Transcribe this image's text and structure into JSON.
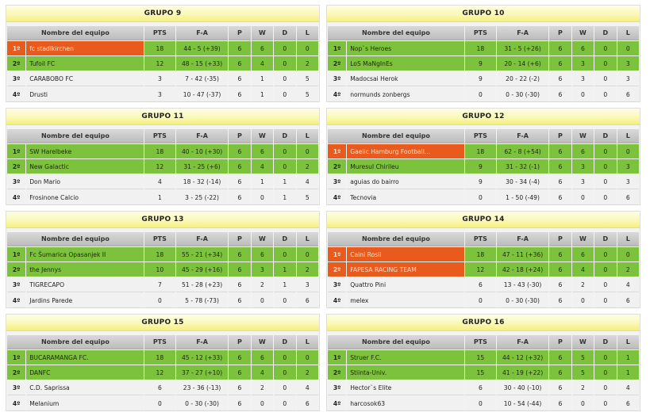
{
  "columns": [
    "Nombre del equipo",
    "PTS",
    "F-A",
    "P",
    "W",
    "D",
    "L"
  ],
  "colors": {
    "qualified_row": "#7cc23d",
    "highlight_row": "#e85b1c",
    "plain_row": "#f1f1f1",
    "title_bar": "#fbf9b8"
  },
  "groups": [
    {
      "title": "GRUPO 9",
      "rows": [
        {
          "pos": "1º",
          "team": "fc stadlkirchen",
          "pts": "18",
          "fa": "44 - 5 (+39)",
          "p": "6",
          "w": "6",
          "d": "0",
          "l": "0",
          "status": "qualified",
          "highlight": true
        },
        {
          "pos": "2º",
          "team": "Tufoil FC",
          "pts": "12",
          "fa": "48 - 15 (+33)",
          "p": "6",
          "w": "4",
          "d": "0",
          "l": "2",
          "status": "qualified",
          "highlight": false
        },
        {
          "pos": "3º",
          "team": "CARABOBO FC",
          "pts": "3",
          "fa": "7 - 42 (-35)",
          "p": "6",
          "w": "1",
          "d": "0",
          "l": "5",
          "status": "plain",
          "highlight": false
        },
        {
          "pos": "4º",
          "team": "Drusti",
          "pts": "3",
          "fa": "10 - 47 (-37)",
          "p": "6",
          "w": "1",
          "d": "0",
          "l": "5",
          "status": "plain",
          "highlight": false
        }
      ]
    },
    {
      "title": "GRUPO 10",
      "rows": [
        {
          "pos": "1º",
          "team": "Nop`s Heroes",
          "pts": "18",
          "fa": "31 - 5 (+26)",
          "p": "6",
          "w": "6",
          "d": "0",
          "l": "0",
          "status": "qualified",
          "highlight": false
        },
        {
          "pos": "2º",
          "team": "LoS MaNgInEs",
          "pts": "9",
          "fa": "20 - 14 (+6)",
          "p": "6",
          "w": "3",
          "d": "0",
          "l": "3",
          "status": "qualified",
          "highlight": false
        },
        {
          "pos": "3º",
          "team": "Madocsai Herok",
          "pts": "9",
          "fa": "20 - 22 (-2)",
          "p": "6",
          "w": "3",
          "d": "0",
          "l": "3",
          "status": "plain",
          "highlight": false
        },
        {
          "pos": "4º",
          "team": "normunds zonbergs",
          "pts": "0",
          "fa": "0 - 30 (-30)",
          "p": "6",
          "w": "0",
          "d": "0",
          "l": "6",
          "status": "plain",
          "highlight": false
        }
      ]
    },
    {
      "title": "GRUPO 11",
      "rows": [
        {
          "pos": "1º",
          "team": "SW Harelbeke",
          "pts": "18",
          "fa": "40 - 10 (+30)",
          "p": "6",
          "w": "6",
          "d": "0",
          "l": "0",
          "status": "qualified",
          "highlight": false
        },
        {
          "pos": "2º",
          "team": "New Galactic",
          "pts": "12",
          "fa": "31 - 25 (+6)",
          "p": "6",
          "w": "4",
          "d": "0",
          "l": "2",
          "status": "qualified",
          "highlight": false
        },
        {
          "pos": "3º",
          "team": "Don Mario",
          "pts": "4",
          "fa": "18 - 32 (-14)",
          "p": "6",
          "w": "1",
          "d": "1",
          "l": "4",
          "status": "plain",
          "highlight": false
        },
        {
          "pos": "4º",
          "team": "Frosinone Calcio",
          "pts": "1",
          "fa": "3 - 25 (-22)",
          "p": "6",
          "w": "0",
          "d": "1",
          "l": "5",
          "status": "plain",
          "highlight": false
        }
      ]
    },
    {
      "title": "GRUPO 12",
      "rows": [
        {
          "pos": "1º",
          "team": "Gaelic Hamburg Football...",
          "pts": "18",
          "fa": "62 - 8 (+54)",
          "p": "6",
          "w": "6",
          "d": "0",
          "l": "0",
          "status": "qualified",
          "highlight": true
        },
        {
          "pos": "2º",
          "team": "Muresul Chirileu",
          "pts": "9",
          "fa": "31 - 32 (-1)",
          "p": "6",
          "w": "3",
          "d": "0",
          "l": "3",
          "status": "qualified",
          "highlight": false
        },
        {
          "pos": "3º",
          "team": "aguias do bairro",
          "pts": "9",
          "fa": "30 - 34 (-4)",
          "p": "6",
          "w": "3",
          "d": "0",
          "l": "3",
          "status": "plain",
          "highlight": false
        },
        {
          "pos": "4º",
          "team": "Tecnovia",
          "pts": "0",
          "fa": "1 - 50 (-49)",
          "p": "6",
          "w": "0",
          "d": "0",
          "l": "6",
          "status": "plain",
          "highlight": false
        }
      ]
    },
    {
      "title": "GRUPO 13",
      "rows": [
        {
          "pos": "1º",
          "team": "Fc Šumarica Opasanjek II",
          "pts": "18",
          "fa": "55 - 21 (+34)",
          "p": "6",
          "w": "6",
          "d": "0",
          "l": "0",
          "status": "qualified",
          "highlight": false
        },
        {
          "pos": "2º",
          "team": "the Jennys",
          "pts": "10",
          "fa": "45 - 29 (+16)",
          "p": "6",
          "w": "3",
          "d": "1",
          "l": "2",
          "status": "qualified",
          "highlight": false
        },
        {
          "pos": "3º",
          "team": "TIGRECAPO",
          "pts": "7",
          "fa": "51 - 28 (+23)",
          "p": "6",
          "w": "2",
          "d": "1",
          "l": "3",
          "status": "plain",
          "highlight": false
        },
        {
          "pos": "4º",
          "team": "Jardins Parede",
          "pts": "0",
          "fa": "5 - 78 (-73)",
          "p": "6",
          "w": "0",
          "d": "0",
          "l": "6",
          "status": "plain",
          "highlight": false
        }
      ]
    },
    {
      "title": "GRUPO 14",
      "rows": [
        {
          "pos": "1º",
          "team": "Caini Rosii",
          "pts": "18",
          "fa": "47 - 11 (+36)",
          "p": "6",
          "w": "6",
          "d": "0",
          "l": "0",
          "status": "qualified",
          "highlight": true
        },
        {
          "pos": "2º",
          "team": "FAPESA RACING TEAM",
          "pts": "12",
          "fa": "42 - 18 (+24)",
          "p": "6",
          "w": "4",
          "d": "0",
          "l": "2",
          "status": "qualified",
          "highlight": true
        },
        {
          "pos": "3º",
          "team": "Quattro Pini",
          "pts": "6",
          "fa": "13 - 43 (-30)",
          "p": "6",
          "w": "2",
          "d": "0",
          "l": "4",
          "status": "plain",
          "highlight": false
        },
        {
          "pos": "4º",
          "team": "melex",
          "pts": "0",
          "fa": "0 - 30 (-30)",
          "p": "6",
          "w": "0",
          "d": "0",
          "l": "6",
          "status": "plain",
          "highlight": false
        }
      ]
    },
    {
      "title": "GRUPO 15",
      "rows": [
        {
          "pos": "1º",
          "team": "BUCARAMANGA FC.",
          "pts": "18",
          "fa": "45 - 12 (+33)",
          "p": "6",
          "w": "6",
          "d": "0",
          "l": "0",
          "status": "qualified",
          "highlight": false
        },
        {
          "pos": "2º",
          "team": "DANFC",
          "pts": "12",
          "fa": "37 - 27 (+10)",
          "p": "6",
          "w": "4",
          "d": "0",
          "l": "2",
          "status": "qualified",
          "highlight": false
        },
        {
          "pos": "3º",
          "team": "C.D. Saprissa",
          "pts": "6",
          "fa": "23 - 36 (-13)",
          "p": "6",
          "w": "2",
          "d": "0",
          "l": "4",
          "status": "plain",
          "highlight": false
        },
        {
          "pos": "4º",
          "team": "Melanium",
          "pts": "0",
          "fa": "0 - 30 (-30)",
          "p": "6",
          "w": "0",
          "d": "0",
          "l": "6",
          "status": "plain",
          "highlight": false
        }
      ]
    },
    {
      "title": "GRUPO 16",
      "rows": [
        {
          "pos": "1º",
          "team": "Struer F.C.",
          "pts": "15",
          "fa": "44 - 12 (+32)",
          "p": "6",
          "w": "5",
          "d": "0",
          "l": "1",
          "status": "qualified",
          "highlight": false
        },
        {
          "pos": "2º",
          "team": "Stiinta-Univ.",
          "pts": "15",
          "fa": "41 - 19 (+22)",
          "p": "6",
          "w": "5",
          "d": "0",
          "l": "1",
          "status": "qualified",
          "highlight": false
        },
        {
          "pos": "3º",
          "team": "Hector`s Elite",
          "pts": "6",
          "fa": "30 - 40 (-10)",
          "p": "6",
          "w": "2",
          "d": "0",
          "l": "4",
          "status": "plain",
          "highlight": false
        },
        {
          "pos": "4º",
          "team": "harcosok63",
          "pts": "0",
          "fa": "10 - 54 (-44)",
          "p": "6",
          "w": "0",
          "d": "0",
          "l": "6",
          "status": "plain",
          "highlight": false
        }
      ]
    }
  ]
}
